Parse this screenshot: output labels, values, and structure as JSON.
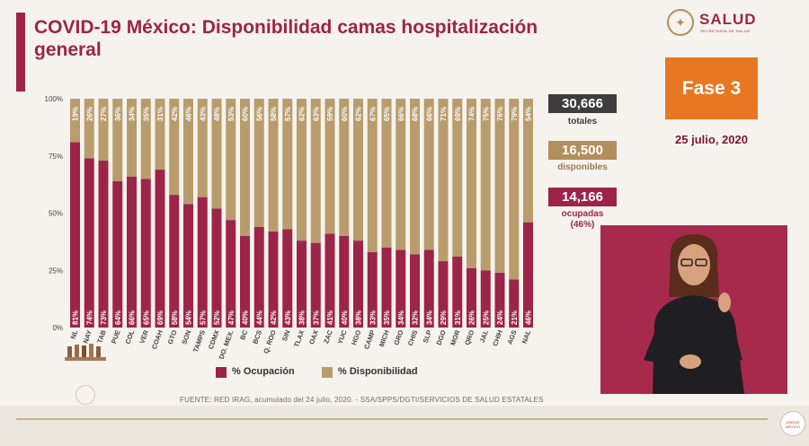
{
  "header": {
    "title": "COVID-19 México: Disponibilidad camas hospitalización general",
    "logo_text": "SALUD",
    "logo_subtext": "SECRETARÍA DE SALUD"
  },
  "phase": {
    "label": "Fase 3"
  },
  "date": "25 julio, 2020",
  "stats": {
    "totales": {
      "value": "30,666",
      "label": "totales"
    },
    "disponibles": {
      "value": "16,500",
      "label": "disponibles"
    },
    "ocupadas": {
      "value": "14,166",
      "label": "ocupadas",
      "note": "(46%)"
    }
  },
  "legend": {
    "ocupacion": "% Ocupación",
    "disponibilidad": "% Disponibilidad"
  },
  "source": "FUENTE: RED IRAG, acumulado del 24 julio, 2020. - SSA/SPPS/DGTI/SERVICIOS DE SALUD ESTATALES",
  "badge_text": "UNIDAD MÉXICO",
  "colors": {
    "ocupacion": "#9d2449",
    "disponibilidad": "#b89c6b",
    "totales_box": "#3d3d3d",
    "disponibles_box": "#b38e5d",
    "ocupadas_box": "#9d2449",
    "phase_box": "#e87722",
    "video_bg": "#a72a4d"
  },
  "chart_data": {
    "type": "bar",
    "stacked": true,
    "percent": true,
    "categories": [
      "NL",
      "NAY",
      "TAB",
      "PUE",
      "COL",
      "VER",
      "COAH",
      "GTO",
      "SON",
      "TAMPS",
      "CDMX",
      "EDO. MEX.",
      "BC",
      "BCS",
      "Q. ROO",
      "SIN",
      "TLAX",
      "OAX",
      "ZAC",
      "YUC",
      "HGO",
      "CAMP",
      "MICH",
      "GRO",
      "CHIS",
      "SLP",
      "DGO",
      "MOR",
      "QRO",
      "JAL",
      "CHIH",
      "AGS",
      "NAL"
    ],
    "series": [
      {
        "name": "% Ocupación",
        "values": [
          81,
          74,
          73,
          64,
          66,
          65,
          69,
          58,
          54,
          57,
          52,
          47,
          40,
          44,
          42,
          43,
          38,
          37,
          41,
          40,
          38,
          33,
          35,
          34,
          32,
          34,
          29,
          31,
          26,
          25,
          24,
          21,
          46
        ]
      },
      {
        "name": "% Disponibilidad",
        "values": [
          19,
          26,
          27,
          36,
          34,
          35,
          31,
          42,
          46,
          43,
          48,
          53,
          60,
          56,
          58,
          57,
          62,
          63,
          59,
          60,
          62,
          67,
          65,
          66,
          68,
          66,
          71,
          69,
          74,
          75,
          76,
          79,
          54
        ]
      }
    ],
    "ylim": [
      0,
      100
    ],
    "yticks": [
      "0%",
      "25%",
      "50%",
      "75%",
      "100%"
    ],
    "grid": false,
    "legend_position": "bottom"
  }
}
